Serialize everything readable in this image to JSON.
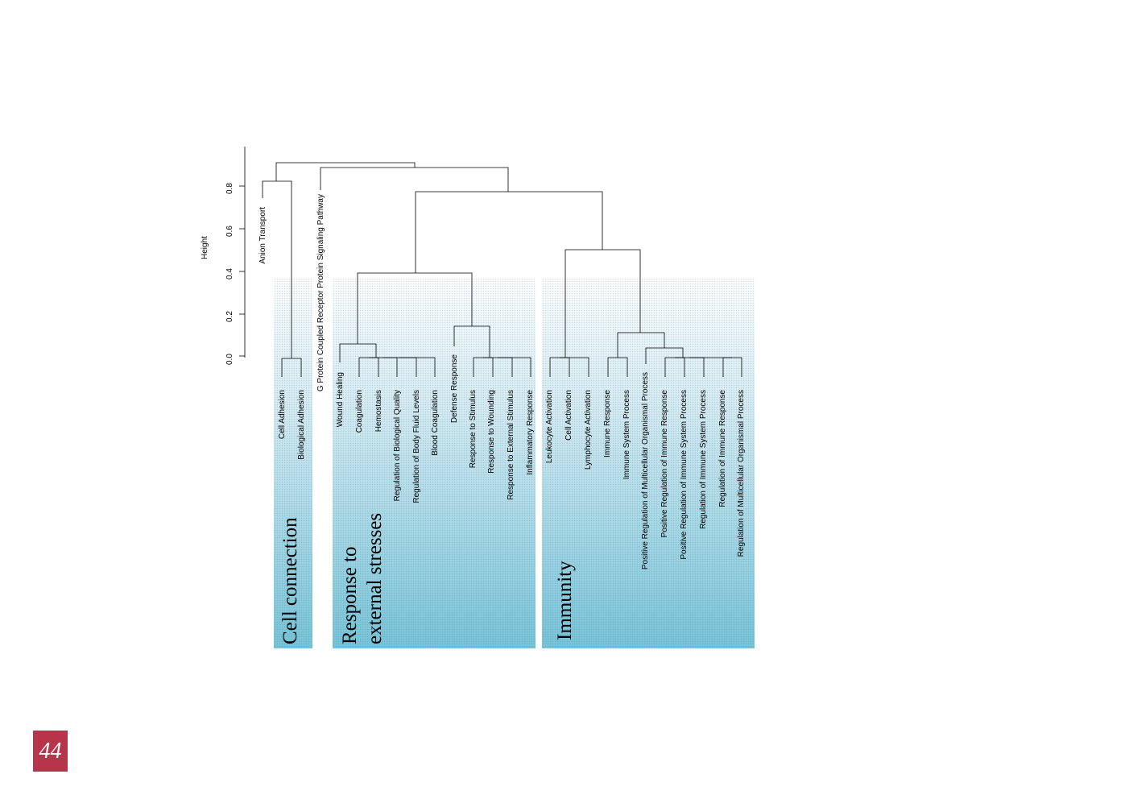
{
  "axis": {
    "title": "Height",
    "ticks": [
      "0.0",
      "0.2",
      "0.4",
      "0.6",
      "0.8"
    ]
  },
  "leaves": [
    "Cell Adhesion",
    "Biological Adhesion",
    "G Protein Coupled Receptor Protein Signaling Pathway",
    "Anion Transport",
    "Wound Healing",
    "Coagulation",
    "Hemostasis",
    "Regulation of Biological Quality",
    "Regulation of Body Fluid Levels",
    "Blood Coagulation",
    "Defense Response",
    "Response to Stimulus",
    "Response to Wounding",
    "Response to External Stimulus",
    "Inflammatory Response",
    "Leukocyte Activation",
    "Cell Activation",
    "Lymphocyte Activation",
    "Immune Response",
    "Immune System Process",
    "Positive Regulation of Multicellular Organismal Process",
    "Positive Regulation of Immune Response",
    "Positive Regulation of Immune System Process",
    "Regulation of Immune System Process",
    "Regulation of Immune Response",
    "Regulation of Multicellular Organismal Process"
  ],
  "groups": {
    "cell": "Cell connection",
    "response": "Response to\nexternal stresses",
    "immunity": "Immunity"
  },
  "page_number": "44",
  "colors": {
    "cluster_fill": "#78c4d8",
    "page_badge": "#b8344b"
  }
}
